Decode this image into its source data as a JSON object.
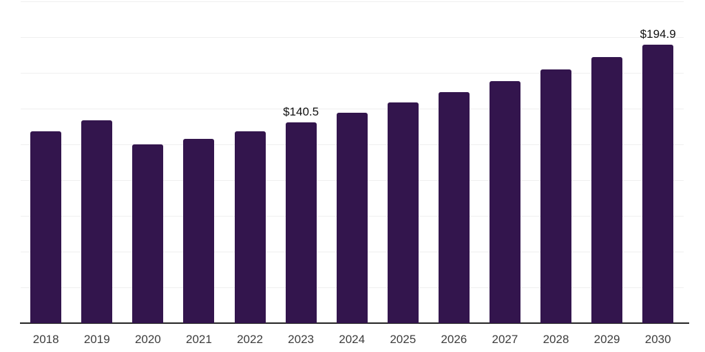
{
  "chart": {
    "background_color": "#ffffff",
    "bar_color": "#33154d",
    "grid_color": "#efefef",
    "axis_color": "#212121",
    "tick_label_color": "#3c3c3c",
    "annotation_color": "#0f0f0f"
  },
  "chart_data": {
    "type": "bar",
    "title": "",
    "xlabel": "",
    "ylabel": "",
    "categories": [
      "2018",
      "2019",
      "2020",
      "2021",
      "2022",
      "2023",
      "2024",
      "2025",
      "2026",
      "2027",
      "2028",
      "2029",
      "2030"
    ],
    "values": [
      134.3,
      142.0,
      125.0,
      129.0,
      134.3,
      140.5,
      147.2,
      154.3,
      161.7,
      169.4,
      177.5,
      186.0,
      194.9
    ],
    "annotations": [
      {
        "category": "2023",
        "text": "$140.5"
      },
      {
        "category": "2030",
        "text": "$194.9"
      }
    ],
    "ylim": [
      0,
      225
    ],
    "gridline_step": 25,
    "grid": true,
    "legend": false,
    "y_axis_labels_visible": false
  }
}
